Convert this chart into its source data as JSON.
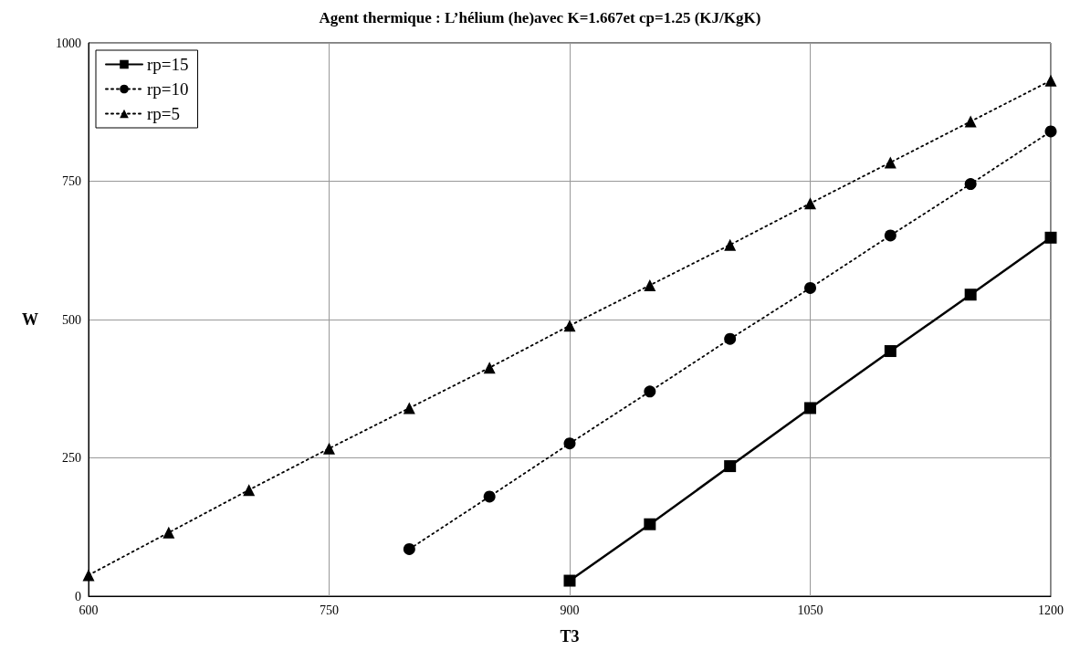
{
  "chart_data": {
    "type": "line",
    "title": "Agent thermique : L’hélium (he)avec K=1.667et cp=1.25 (KJ/KgK)",
    "xlabel": "T3",
    "ylabel": "W",
    "xlim": [
      600,
      1200
    ],
    "xticks": [
      600,
      750,
      900,
      1050,
      1200
    ],
    "ylim": [
      0,
      1000
    ],
    "yticks": [
      0,
      250,
      500,
      750,
      1000
    ],
    "grid": true,
    "legend": "top left",
    "series": [
      {
        "name": "rp=15",
        "color": "#000000",
        "marker": "square",
        "line_style": "solid",
        "x": [
          900,
          950,
          1000,
          1050,
          1100,
          1150,
          1200
        ],
        "values": [
          28,
          130,
          235,
          340,
          443,
          545,
          648
        ]
      },
      {
        "name": "rp=10",
        "color": "#000000",
        "marker": "circle",
        "line_style": "dotted",
        "x": [
          800,
          850,
          900,
          950,
          1000,
          1050,
          1100,
          1150,
          1200
        ],
        "values": [
          85,
          180,
          276,
          370,
          465,
          557,
          652,
          745,
          840
        ]
      },
      {
        "name": "rp=5",
        "color": "#000000",
        "marker": "triangle",
        "line_style": "dotted",
        "x": [
          600,
          650,
          700,
          750,
          800,
          850,
          900,
          950,
          1000,
          1050,
          1100,
          1150,
          1200
        ],
        "values": [
          38,
          115,
          192,
          267,
          340,
          413,
          489,
          562,
          635,
          710,
          784,
          858,
          932
        ]
      }
    ]
  }
}
